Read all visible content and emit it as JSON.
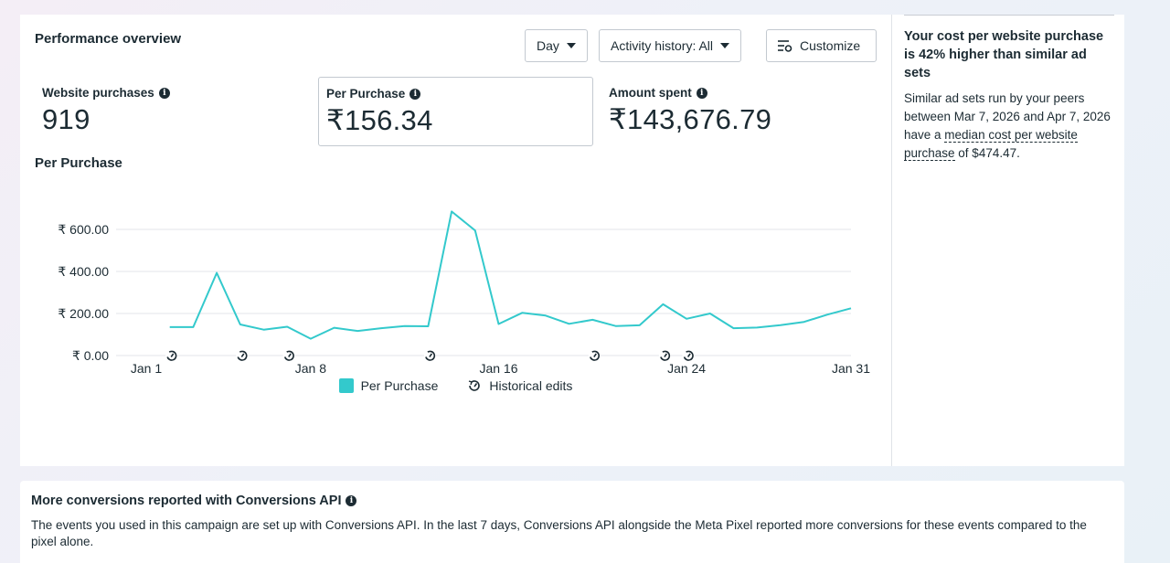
{
  "performance": {
    "title": "Performance overview",
    "controls": {
      "day_label": "Day",
      "activity_label": "Activity history: All",
      "customize_label": "Customize"
    },
    "metrics": [
      {
        "label": "Website purchases",
        "value": "919",
        "selected": false
      },
      {
        "label": "Per Purchase",
        "value": "₹156.34",
        "selected": true
      },
      {
        "label": "Amount spent",
        "value": "₹143,676.79",
        "selected": false
      }
    ],
    "chart_title": "Per Purchase",
    "legend": {
      "series_label": "Per Purchase",
      "edits_label": "Historical edits"
    }
  },
  "chart_data": {
    "type": "line",
    "series_name": "Per Purchase",
    "color": "#33c9cc",
    "y_ticks": [
      {
        "value": 0,
        "label": "₹ 0.00"
      },
      {
        "value": 200,
        "label": "₹ 200.00"
      },
      {
        "value": 400,
        "label": "₹ 400.00"
      },
      {
        "value": 600,
        "label": "₹ 600.00"
      }
    ],
    "x_ticks": [
      {
        "day": 1,
        "label": "Jan 1"
      },
      {
        "day": 8,
        "label": "Jan 8"
      },
      {
        "day": 16,
        "label": "Jan 16"
      },
      {
        "day": 24,
        "label": "Jan 24"
      },
      {
        "day": 31,
        "label": "Jan 31"
      }
    ],
    "ylim": [
      0,
      700
    ],
    "xlim": [
      1,
      31
    ],
    "points": [
      [
        2,
        135
      ],
      [
        3,
        135
      ],
      [
        4,
        393
      ],
      [
        5,
        148
      ],
      [
        6,
        123
      ],
      [
        7,
        137
      ],
      [
        8,
        80
      ],
      [
        9,
        132
      ],
      [
        10,
        117
      ],
      [
        11,
        130
      ],
      [
        12,
        140
      ],
      [
        13,
        139
      ],
      [
        14,
        685
      ],
      [
        15,
        595
      ],
      [
        16,
        150
      ],
      [
        17,
        203
      ],
      [
        18,
        190
      ],
      [
        19,
        151
      ],
      [
        20,
        170
      ],
      [
        21,
        140
      ],
      [
        22,
        144
      ],
      [
        23,
        244
      ],
      [
        24,
        175
      ],
      [
        25,
        200
      ],
      [
        26,
        130
      ],
      [
        27,
        133
      ],
      [
        28,
        145
      ],
      [
        29,
        160
      ],
      [
        30,
        195
      ],
      [
        31,
        225
      ]
    ],
    "historical_edits_days": [
      2,
      5,
      7,
      13,
      20,
      23,
      24
    ]
  },
  "sidebar": {
    "title": "Your cost per website purchase is 42% higher than similar ad sets",
    "body_before": "Similar ad sets run by your peers between Mar 7, 2026 and Apr 7, 2026 have a ",
    "body_link": "median cost per website purchase",
    "body_after": " of $474.47."
  },
  "conversions": {
    "title": "More conversions reported with Conversions API",
    "body": "The events you used in this campaign are set up with Conversions API. In the last 7 days, Conversions API alongside the Meta Pixel reported more conversions for these events compared to the pixel alone."
  }
}
